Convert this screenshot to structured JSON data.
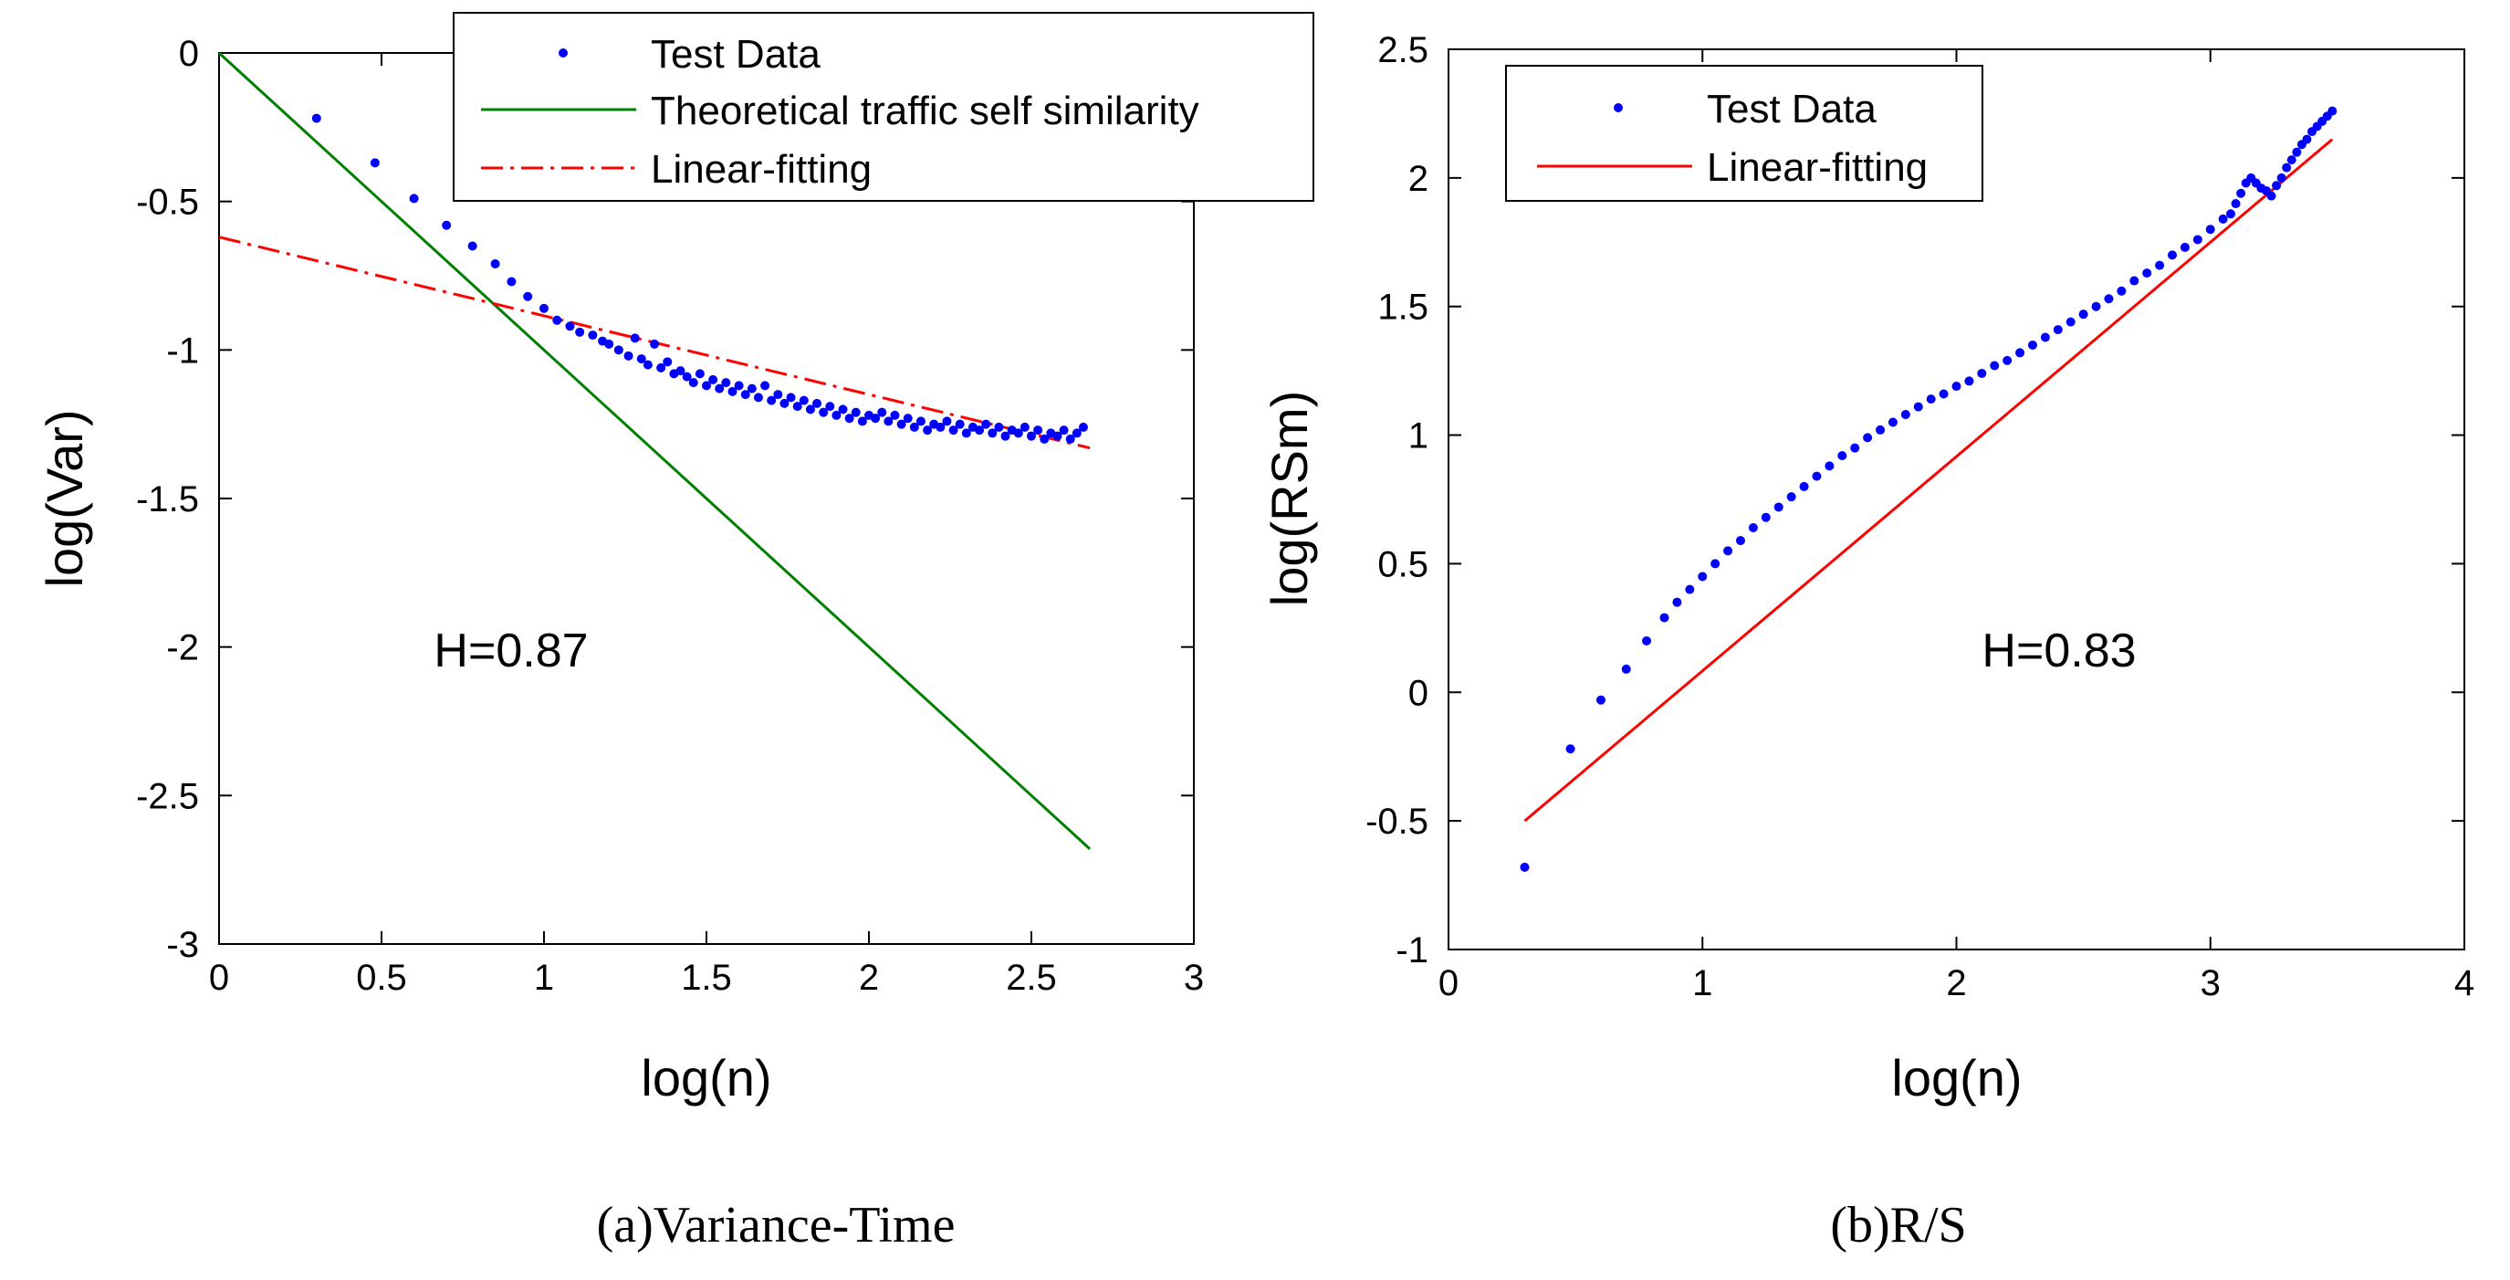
{
  "chart_data": [
    {
      "type": "scatter",
      "caption": "(a)Variance-Time",
      "xlabel": "log(n)",
      "ylabel": "log(Var)",
      "xlim": [
        0,
        3
      ],
      "ylim": [
        -3,
        0
      ],
      "xticks": [
        "0",
        "0.5",
        "1",
        "1.5",
        "2",
        "2.5",
        "3"
      ],
      "yticks": [
        "0",
        "-0.5",
        "-1",
        "-1.5",
        "-2",
        "-2.5",
        "-3"
      ],
      "annotation": "H=0.87",
      "legend": [
        "Test Data",
        "Theoretical traffic self similarity",
        "Linear-fitting"
      ],
      "legend_position": "top-right",
      "series": [
        {
          "name": "Test Data",
          "style": "points",
          "color": "#0000ff",
          "x": [
            0.3,
            0.48,
            0.6,
            0.7,
            0.78,
            0.85,
            0.9,
            0.95,
            1.0,
            1.04,
            1.08,
            1.11,
            1.15,
            1.18,
            1.2,
            1.23,
            1.26,
            1.28,
            1.3,
            1.32,
            1.34,
            1.36,
            1.38,
            1.4,
            1.42,
            1.44,
            1.46,
            1.48,
            1.5,
            1.52,
            1.54,
            1.56,
            1.58,
            1.6,
            1.62,
            1.64,
            1.66,
            1.68,
            1.7,
            1.72,
            1.74,
            1.76,
            1.78,
            1.8,
            1.82,
            1.84,
            1.86,
            1.88,
            1.9,
            1.92,
            1.94,
            1.96,
            1.98,
            2.0,
            2.02,
            2.04,
            2.06,
            2.08,
            2.1,
            2.12,
            2.14,
            2.16,
            2.18,
            2.2,
            2.22,
            2.24,
            2.26,
            2.28,
            2.3,
            2.32,
            2.34,
            2.36,
            2.38,
            2.4,
            2.42,
            2.44,
            2.46,
            2.48,
            2.5,
            2.52,
            2.54,
            2.56,
            2.58,
            2.6,
            2.62,
            2.64,
            2.66
          ],
          "y": [
            -0.22,
            -0.37,
            -0.49,
            -0.58,
            -0.65,
            -0.71,
            -0.77,
            -0.82,
            -0.86,
            -0.9,
            -0.92,
            -0.94,
            -0.95,
            -0.97,
            -0.98,
            -1.0,
            -1.02,
            -0.96,
            -1.03,
            -1.05,
            -0.98,
            -1.06,
            -1.04,
            -1.08,
            -1.07,
            -1.09,
            -1.11,
            -1.08,
            -1.12,
            -1.1,
            -1.13,
            -1.11,
            -1.14,
            -1.12,
            -1.15,
            -1.13,
            -1.16,
            -1.12,
            -1.17,
            -1.15,
            -1.18,
            -1.16,
            -1.19,
            -1.17,
            -1.2,
            -1.18,
            -1.21,
            -1.19,
            -1.22,
            -1.2,
            -1.23,
            -1.21,
            -1.24,
            -1.22,
            -1.23,
            -1.21,
            -1.24,
            -1.22,
            -1.25,
            -1.23,
            -1.26,
            -1.24,
            -1.27,
            -1.25,
            -1.26,
            -1.24,
            -1.27,
            -1.25,
            -1.28,
            -1.26,
            -1.27,
            -1.25,
            -1.28,
            -1.26,
            -1.29,
            -1.27,
            -1.28,
            -1.26,
            -1.29,
            -1.27,
            -1.3,
            -1.28,
            -1.29,
            -1.27,
            -1.3,
            -1.28,
            -1.26
          ]
        },
        {
          "name": "Theoretical traffic self similarity",
          "style": "line",
          "color": "#008000",
          "x": [
            0,
            2.68
          ],
          "y": [
            0,
            -2.68
          ]
        },
        {
          "name": "Linear-fitting",
          "style": "dashdot",
          "color": "#ff0000",
          "x": [
            0,
            2.68
          ],
          "y": [
            -0.62,
            -1.33
          ]
        }
      ]
    },
    {
      "type": "scatter",
      "caption": "(b)R/S",
      "xlabel": "log(n)",
      "ylabel": "log(RSm)",
      "xlim": [
        0,
        4
      ],
      "ylim": [
        -1,
        2.5
      ],
      "xticks": [
        "0",
        "1",
        "2",
        "3",
        "4"
      ],
      "yticks": [
        "2.5",
        "2",
        "1.5",
        "1",
        "0.5",
        "0",
        "-0.5",
        "-1"
      ],
      "annotation": "H=0.83",
      "legend": [
        "Test Data",
        "Linear-fitting"
      ],
      "legend_position": "top-left",
      "series": [
        {
          "name": "Test Data",
          "style": "points",
          "color": "#0000ff",
          "x": [
            0.3,
            0.48,
            0.6,
            0.7,
            0.78,
            0.85,
            0.9,
            0.95,
            1.0,
            1.05,
            1.1,
            1.15,
            1.2,
            1.25,
            1.3,
            1.35,
            1.4,
            1.45,
            1.5,
            1.55,
            1.6,
            1.65,
            1.7,
            1.75,
            1.8,
            1.85,
            1.9,
            1.95,
            2.0,
            2.05,
            2.1,
            2.15,
            2.2,
            2.25,
            2.3,
            2.35,
            2.4,
            2.45,
            2.5,
            2.55,
            2.6,
            2.65,
            2.7,
            2.75,
            2.8,
            2.85,
            2.9,
            2.95,
            3.0,
            3.05,
            3.08,
            3.1,
            3.12,
            3.14,
            3.16,
            3.18,
            3.2,
            3.22,
            3.24,
            3.26,
            3.28,
            3.3,
            3.32,
            3.34,
            3.36,
            3.38,
            3.4,
            3.42,
            3.44,
            3.46,
            3.48
          ],
          "y": [
            -0.68,
            -0.22,
            -0.03,
            0.09,
            0.2,
            0.29,
            0.35,
            0.4,
            0.45,
            0.5,
            0.55,
            0.59,
            0.64,
            0.68,
            0.72,
            0.76,
            0.8,
            0.84,
            0.88,
            0.92,
            0.95,
            0.99,
            1.02,
            1.05,
            1.08,
            1.11,
            1.14,
            1.16,
            1.19,
            1.21,
            1.24,
            1.27,
            1.29,
            1.32,
            1.35,
            1.38,
            1.41,
            1.44,
            1.47,
            1.5,
            1.53,
            1.56,
            1.6,
            1.63,
            1.66,
            1.7,
            1.73,
            1.76,
            1.8,
            1.84,
            1.86,
            1.9,
            1.94,
            1.98,
            2.0,
            1.98,
            1.96,
            1.95,
            1.93,
            1.97,
            2.0,
            2.04,
            2.07,
            2.1,
            2.13,
            2.15,
            2.18,
            2.2,
            2.22,
            2.24,
            2.26
          ]
        },
        {
          "name": "Linear-fitting",
          "style": "line",
          "color": "#ff0000",
          "x": [
            0.3,
            3.48
          ],
          "y": [
            -0.5,
            2.15
          ]
        }
      ]
    }
  ]
}
